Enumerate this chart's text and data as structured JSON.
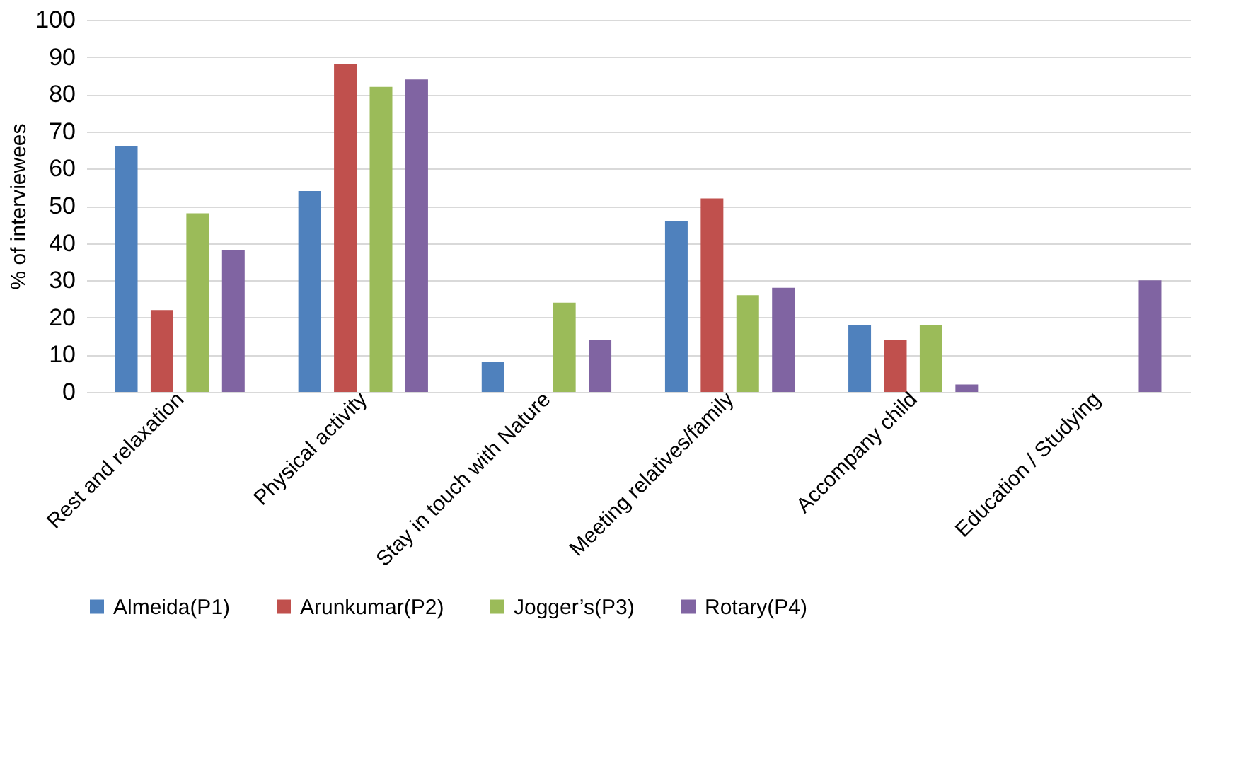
{
  "chart_data": {
    "type": "bar",
    "ylabel": "% of interviewees",
    "categories": [
      "Rest and relaxation",
      "Physical activity",
      "Stay in touch with Nature",
      "Meeting relatives/family",
      "Accompany child",
      "Education / Studying"
    ],
    "series": [
      {
        "name": "Almeida(P1)",
        "color": "#4f81bd",
        "values": [
          66,
          54,
          8,
          46,
          18,
          0
        ]
      },
      {
        "name": "Arunkumar(P2)",
        "color": "#c0504d",
        "values": [
          22,
          88,
          0,
          52,
          14,
          0
        ]
      },
      {
        "name": "Jogger’s(P3)",
        "color": "#9bbb59",
        "values": [
          48,
          82,
          24,
          26,
          18,
          0
        ]
      },
      {
        "name": "Rotary(P4)",
        "color": "#8064a2",
        "values": [
          38,
          84,
          14,
          28,
          2,
          30
        ]
      }
    ],
    "ylim": [
      0,
      100
    ],
    "yticks": [
      0,
      10,
      20,
      30,
      40,
      50,
      60,
      70,
      80,
      90,
      100
    ],
    "grid": "y",
    "legend": "bottom"
  }
}
